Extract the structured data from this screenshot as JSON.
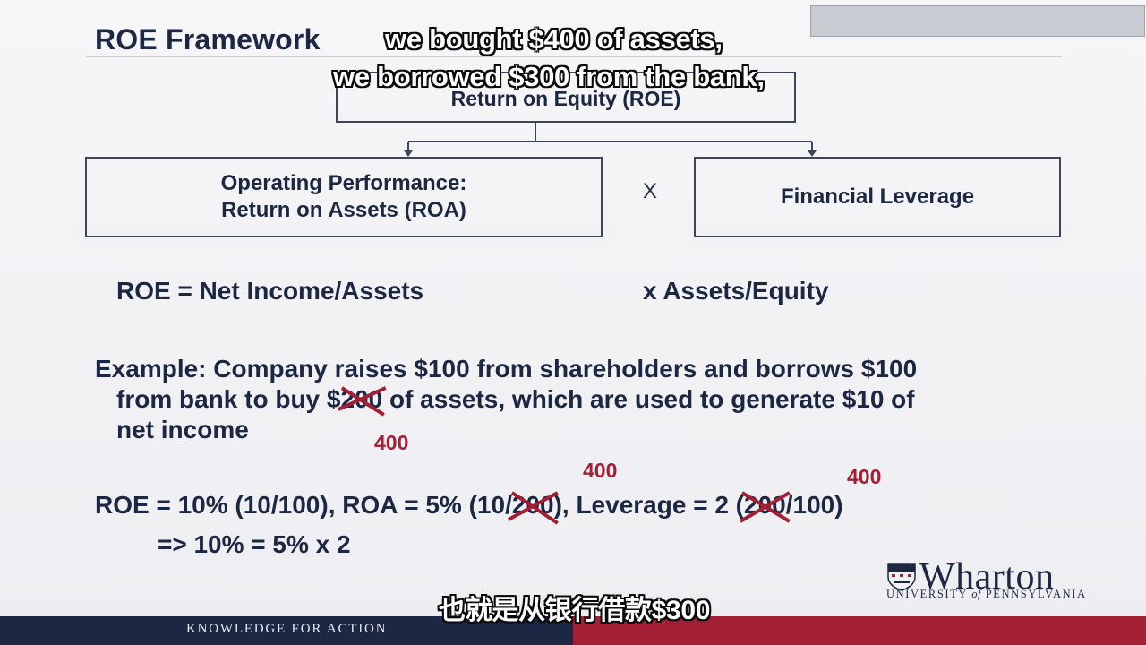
{
  "slide": {
    "title": "ROE Framework",
    "top_box": "Return on Equity (ROE)",
    "left_box_line1": "Operating Performance:",
    "left_box_line2": "Return on Assets (ROA)",
    "times": "X",
    "right_box": "Financial Leverage",
    "formula_left": "ROE = Net Income/Assets",
    "formula_right": "x  Assets/Equity",
    "example_line1": "Example: Company raises $100 from shareholders and borrows $100",
    "example_line2_a": "from bank to buy $",
    "example_line2_struck": "200",
    "example_line2_b": " of assets, which are used to generate $10 of",
    "example_line3": "net income",
    "example_correction": "400",
    "calc_a": "ROE = 10%  (10/100), ROA = 5% (10/",
    "calc_struck1": "200",
    "calc_b": "), Leverage = 2 (",
    "calc_struck2": "200",
    "calc_c": "/100)",
    "calc_correction1": "400",
    "calc_correction2": "400",
    "result_line": "=> 10% = 5% x 2"
  },
  "subtitles": {
    "line1": "we bought $400 of assets,",
    "line2": "we borrowed $300 from the bank,",
    "chinese": "也就是从银行借款$300"
  },
  "footer": {
    "tagline": "KNOWLEDGE FOR ACTION"
  },
  "logo": {
    "name": "Wharton",
    "sub_a": "UNIVERSITY ",
    "sub_of": "of",
    "sub_b": " PENNSYLVANIA"
  },
  "colors": {
    "navy": "#1c2843",
    "red": "#a31f34"
  }
}
